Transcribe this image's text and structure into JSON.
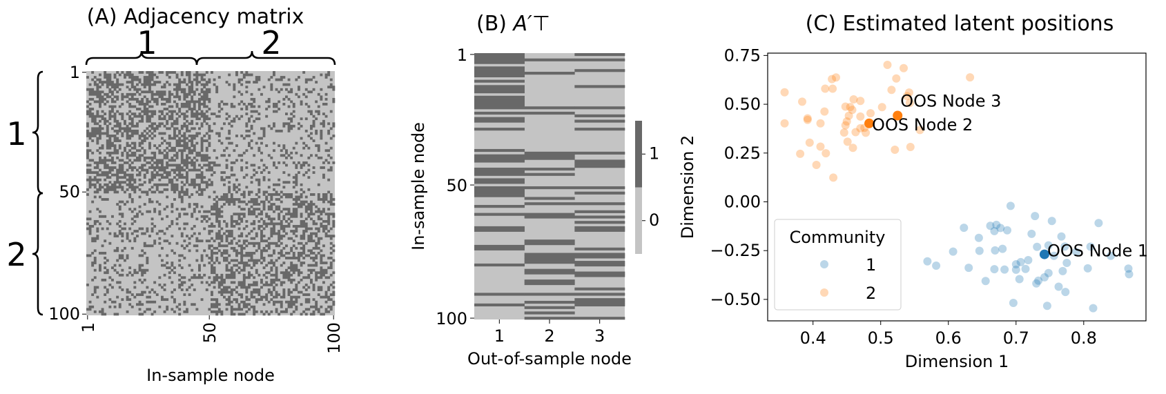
{
  "colors": {
    "dark": "#686868",
    "light": "#c4c4c4",
    "community1": "#1f77b4",
    "community2": "#ff7f0e"
  },
  "chart_data": [
    {
      "type": "heatmap",
      "title": "(A) Adjacency matrix",
      "xlabel": "In-sample node",
      "ylabel": "",
      "xticks": [
        "1",
        "50",
        "100"
      ],
      "yticks": [
        "1",
        "50",
        "100"
      ],
      "block_labels_top": [
        "1",
        "2"
      ],
      "block_labels_left": [
        "1",
        "2"
      ],
      "n_nodes": 100,
      "block_sizes": [
        50,
        50
      ],
      "block_edge_probabilities_estimate": [
        [
          0.5,
          0.2
        ],
        [
          0.2,
          0.42
        ]
      ],
      "values_binary": "0 = light, 1 = dark"
    },
    {
      "type": "heatmap",
      "title_prefix": "(B) ",
      "title_symbol": "A′⊤",
      "xlabel": "Out-of-sample node",
      "ylabel": "In-sample node",
      "xticks": [
        "1",
        "2",
        "3"
      ],
      "yticks": [
        "1",
        "50",
        "100"
      ],
      "colorbar_ticks": [
        "1",
        "0"
      ],
      "n_rows": 100,
      "columns": [
        {
          "name": "1",
          "rows_with_edge": [
            0,
            1,
            2,
            3,
            5,
            6,
            7,
            8,
            10,
            12,
            13,
            14,
            16,
            17,
            18,
            19,
            20,
            22,
            24,
            25,
            28,
            36,
            38,
            39,
            40,
            43,
            44,
            45,
            47,
            48,
            50,
            51,
            52,
            53,
            57,
            60,
            65,
            66,
            72,
            73,
            79,
            90,
            94
          ]
        },
        {
          "name": "2",
          "rows_with_edge": [
            2,
            7,
            20,
            22,
            37,
            38,
            39,
            43,
            45,
            50,
            54,
            56,
            60,
            61,
            70,
            71,
            75,
            76,
            77,
            78,
            81,
            82,
            85,
            86,
            90,
            93,
            95,
            97,
            99
          ]
        },
        {
          "name": "3",
          "rows_with_edge": [
            0,
            2,
            6,
            12,
            20,
            23,
            25,
            28,
            37,
            40,
            41,
            42,
            50,
            52,
            56,
            59,
            61,
            63,
            65,
            66,
            73,
            75,
            76,
            78,
            79,
            82,
            83,
            88,
            90,
            92,
            93,
            94,
            99
          ]
        }
      ]
    },
    {
      "type": "scatter",
      "title": "(C) Estimated latent positions",
      "xlabel": "Dimension 1",
      "ylabel": "Dimension 2",
      "xlim": [
        0.333,
        0.892
      ],
      "ylim": [
        -0.61,
        0.762
      ],
      "xticks": [
        "0.4",
        "0.5",
        "0.6",
        "0.7",
        "0.8"
      ],
      "xtick_values": [
        0.4,
        0.5,
        0.6,
        0.7,
        0.8
      ],
      "yticks": [
        "−0.50",
        "−0.25",
        "0.00",
        "0.25",
        "0.50",
        "0.75"
      ],
      "ytick_values": [
        -0.5,
        -0.25,
        0,
        0.25,
        0.5,
        0.75
      ],
      "legend": {
        "title": "Community",
        "entries": [
          "1",
          "2"
        ],
        "position": "lower-left"
      },
      "series": [
        {
          "name": "1",
          "points": [
            [
              0.692,
              -0.021
            ],
            [
              0.728,
              -0.073
            ],
            [
              0.753,
              -0.098
            ],
            [
              0.822,
              -0.109
            ],
            [
              0.623,
              -0.133
            ],
            [
              0.662,
              -0.123
            ],
            [
              0.671,
              -0.118
            ],
            [
              0.677,
              -0.134
            ],
            [
              0.668,
              -0.15
            ],
            [
              0.687,
              -0.146
            ],
            [
              0.723,
              -0.164
            ],
            [
              0.645,
              -0.185
            ],
            [
              0.767,
              -0.178
            ],
            [
              0.607,
              -0.255
            ],
            [
              0.646,
              -0.251
            ],
            [
              0.669,
              -0.249
            ],
            [
              0.68,
              -0.241
            ],
            [
              0.731,
              -0.231
            ],
            [
              0.748,
              -0.223
            ],
            [
              0.772,
              -0.229
            ],
            [
              0.789,
              -0.257
            ],
            [
              0.81,
              -0.23
            ],
            [
              0.756,
              -0.277
            ],
            [
              0.84,
              -0.277
            ],
            [
              0.569,
              -0.305
            ],
            [
              0.582,
              -0.327
            ],
            [
              0.63,
              -0.338
            ],
            [
              0.668,
              -0.345
            ],
            [
              0.683,
              -0.347
            ],
            [
              0.7,
              -0.32
            ],
            [
              0.707,
              -0.309
            ],
            [
              0.718,
              -0.299
            ],
            [
              0.7,
              -0.348
            ],
            [
              0.714,
              -0.344
            ],
            [
              0.748,
              -0.365
            ],
            [
              0.769,
              -0.355
            ],
            [
              0.775,
              -0.313
            ],
            [
              0.806,
              -0.341
            ],
            [
              0.866,
              -0.342
            ],
            [
              0.867,
              -0.371
            ],
            [
              0.655,
              -0.406
            ],
            [
              0.705,
              -0.396
            ],
            [
              0.733,
              -0.404
            ],
            [
              0.73,
              -0.418
            ],
            [
              0.742,
              -0.387
            ],
            [
              0.763,
              -0.435
            ],
            [
              0.773,
              -0.462
            ],
            [
              0.696,
              -0.518
            ],
            [
              0.746,
              -0.533
            ],
            [
              0.814,
              -0.545
            ]
          ]
        },
        {
          "name": "2",
          "points": [
            [
              0.358,
              0.561
            ],
            [
              0.358,
              0.402
            ],
            [
              0.384,
              0.513
            ],
            [
              0.392,
              0.428
            ],
            [
              0.392,
              0.42
            ],
            [
              0.411,
              0.402
            ],
            [
              0.417,
              0.463
            ],
            [
              0.418,
              0.58
            ],
            [
              0.429,
              0.58
            ],
            [
              0.428,
              0.629
            ],
            [
              0.434,
              0.637
            ],
            [
              0.395,
              0.303
            ],
            [
              0.381,
              0.246
            ],
            [
              0.405,
              0.189
            ],
            [
              0.419,
              0.249
            ],
            [
              0.411,
              0.283
            ],
            [
              0.43,
              0.124
            ],
            [
              0.46,
              0.525
            ],
            [
              0.47,
              0.517
            ],
            [
              0.448,
              0.488
            ],
            [
              0.455,
              0.486
            ],
            [
              0.458,
              0.471
            ],
            [
              0.453,
              0.441
            ],
            [
              0.45,
              0.412
            ],
            [
              0.448,
              0.392
            ],
            [
              0.446,
              0.355
            ],
            [
              0.463,
              0.357
            ],
            [
              0.451,
              0.308
            ],
            [
              0.459,
              0.277
            ],
            [
              0.47,
              0.437
            ],
            [
              0.47,
              0.377
            ],
            [
              0.476,
              0.379
            ],
            [
              0.478,
              0.354
            ],
            [
              0.485,
              0.454
            ],
            [
              0.502,
              0.485
            ],
            [
              0.51,
              0.702
            ],
            [
              0.534,
              0.685
            ],
            [
              0.523,
              0.632
            ],
            [
              0.516,
              0.574
            ],
            [
              0.542,
              0.56
            ],
            [
              0.539,
              0.542
            ],
            [
              0.543,
              0.507
            ],
            [
              0.558,
              0.368
            ],
            [
              0.521,
              0.267
            ],
            [
              0.544,
              0.281
            ],
            [
              0.632,
              0.638
            ]
          ]
        }
      ],
      "annotations": [
        {
          "text": "OOS Node 1",
          "community": "1",
          "x": 0.742,
          "y": -0.269
        },
        {
          "text": "OOS Node 2",
          "community": "2",
          "x": 0.483,
          "y": 0.402
        },
        {
          "text": "OOS Node 3",
          "community": "2",
          "x": 0.525,
          "y": 0.442
        }
      ]
    }
  ]
}
